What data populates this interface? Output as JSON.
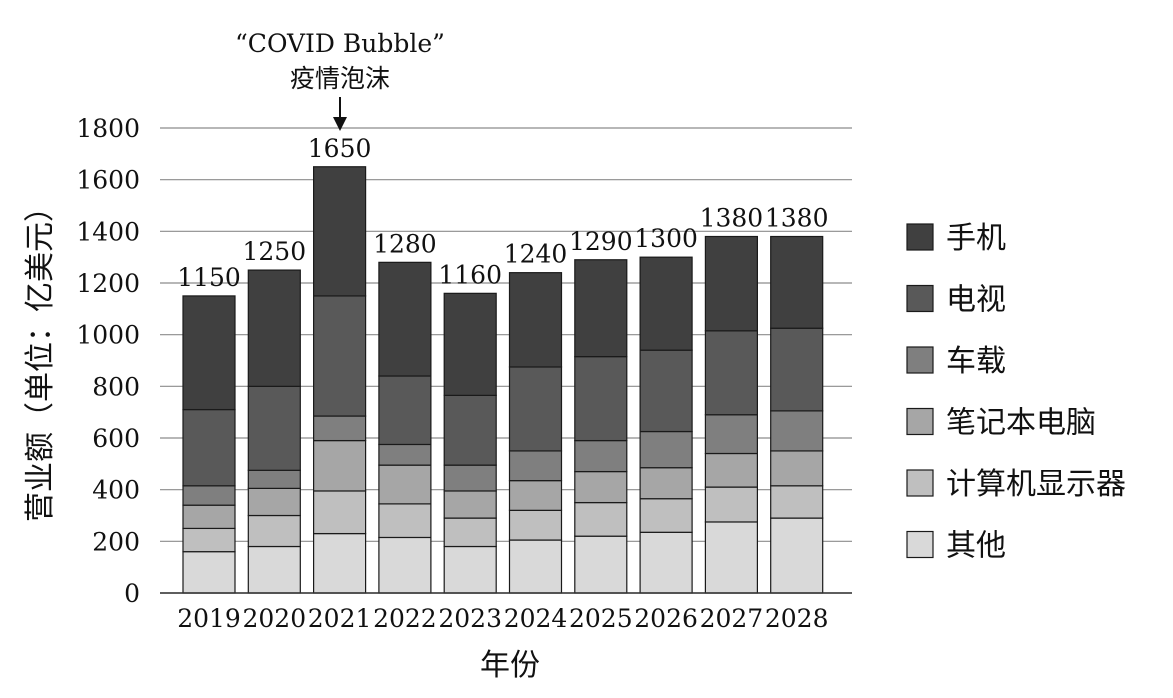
{
  "chart_data": {
    "type": "bar",
    "stacked": true,
    "xlabel": "年份",
    "ylabel": "营业额（单位：亿美元）",
    "ylim": [
      0,
      1800
    ],
    "yticks": [
      0,
      200,
      400,
      600,
      800,
      1000,
      1200,
      1400,
      1600,
      1800
    ],
    "grid": true,
    "legend_position": "right",
    "categories": [
      "2019",
      "2020",
      "2021",
      "2022",
      "2023",
      "2024",
      "2025",
      "2026",
      "2027",
      "2028"
    ],
    "totals": [
      1150,
      1250,
      1650,
      1280,
      1160,
      1240,
      1290,
      1300,
      1380,
      1380
    ],
    "series": [
      {
        "name": "其他",
        "color": "#d9d9d9",
        "values": [
          160,
          180,
          230,
          215,
          180,
          205,
          220,
          235,
          275,
          290
        ]
      },
      {
        "name": "计算机显示器",
        "color": "#bfbfbf",
        "values": [
          90,
          120,
          165,
          130,
          110,
          115,
          130,
          130,
          135,
          125
        ]
      },
      {
        "name": "笔记本电脑",
        "color": "#a6a6a6",
        "values": [
          90,
          105,
          195,
          150,
          105,
          115,
          120,
          120,
          130,
          135
        ]
      },
      {
        "name": "车载",
        "color": "#7f7f7f",
        "values": [
          75,
          70,
          95,
          80,
          100,
          115,
          120,
          140,
          150,
          155
        ]
      },
      {
        "name": "电视",
        "color": "#595959",
        "values": [
          295,
          325,
          465,
          265,
          270,
          325,
          325,
          315,
          325,
          320
        ]
      },
      {
        "name": "手机",
        "color": "#404040",
        "values": [
          440,
          450,
          500,
          440,
          395,
          365,
          375,
          360,
          365,
          355
        ]
      }
    ],
    "annotation": {
      "category": "2021",
      "line1": "“COVID Bubble”",
      "line2": "疫情泡沫"
    }
  }
}
